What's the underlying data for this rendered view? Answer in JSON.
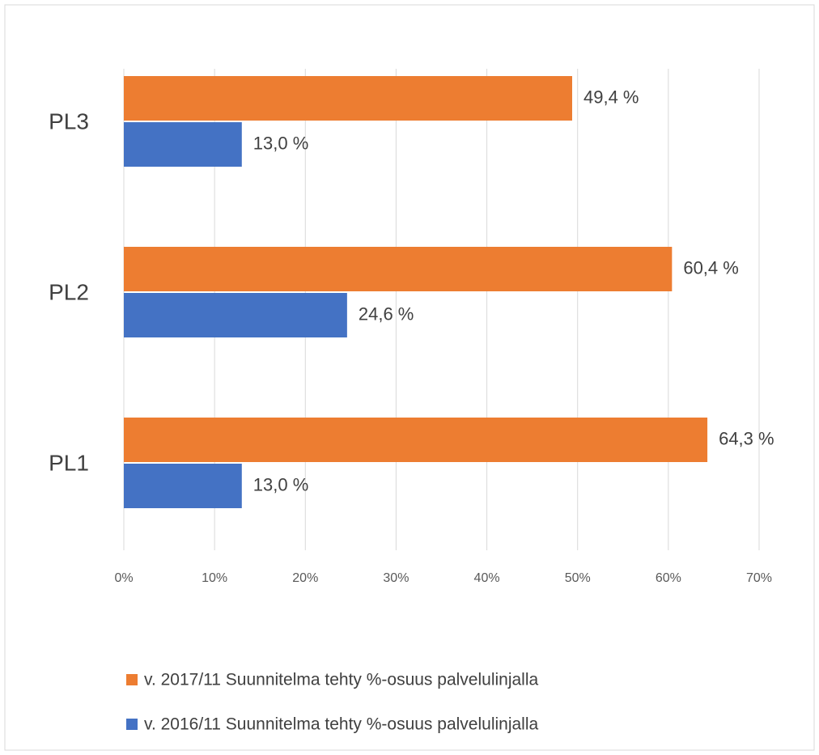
{
  "chart_data": {
    "type": "barh",
    "categories": [
      "PL3",
      "PL2",
      "PL1"
    ],
    "series": [
      {
        "name": "v. 2017/11 Suunnitelma tehty %-osuus palvelulinjalla",
        "color": "#ed7d31",
        "values": [
          49.4,
          60.4,
          64.3
        ],
        "value_labels": [
          "49,4 %",
          "60,4 %",
          "64,3 %"
        ]
      },
      {
        "name": "v. 2016/11 Suunnitelma tehty %-osuus palvelulinjalla",
        "color": "#4472c4",
        "values": [
          13.0,
          24.6,
          13.0
        ],
        "value_labels": [
          "13,0 %",
          "24,6 %",
          "13,0 %"
        ]
      }
    ],
    "xlim": [
      0,
      70
    ],
    "xticks": [
      {
        "value": 0,
        "label": "0%"
      },
      {
        "value": 10,
        "label": "10%"
      },
      {
        "value": 20,
        "label": "20%"
      },
      {
        "value": 30,
        "label": "30%"
      },
      {
        "value": 40,
        "label": "40%"
      },
      {
        "value": 50,
        "label": "50%"
      },
      {
        "value": 60,
        "label": "60%"
      },
      {
        "value": 70,
        "label": "70%"
      }
    ],
    "grid": true,
    "legend": "bottom"
  }
}
